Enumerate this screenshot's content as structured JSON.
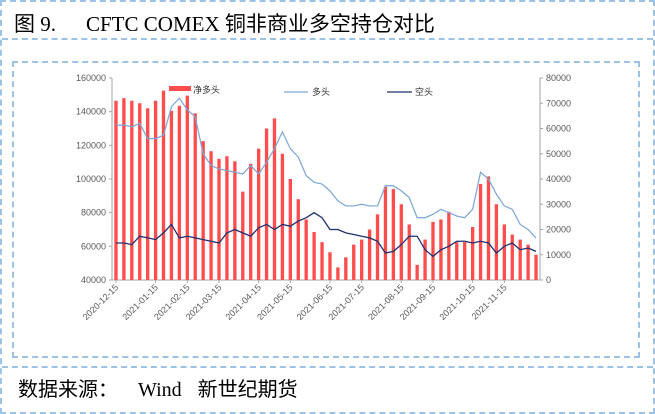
{
  "header": {
    "figure_number": "图 9.",
    "title": "CFTC COMEX 铜非商业多空持仓对比"
  },
  "footer": {
    "source_label": "数据来源：",
    "source_name": "Wind",
    "provider": "新世纪期货"
  },
  "colors": {
    "frame": "#9cc3e5",
    "bars": "#ff4d4d",
    "long_line": "#7aa6d6",
    "short_line": "#1f2f6f",
    "tick_text": "#595959"
  },
  "chart_data": {
    "type": "bar",
    "x_tick_labels": [
      "2020-12-15",
      "2021-01-15",
      "2021-02-15",
      "2021-03-15",
      "2021-04-15",
      "2021-05-15",
      "2021-06-15",
      "2021-07-15",
      "2021-08-15",
      "2021-09-15",
      "2021-10-15",
      "2021-11-15"
    ],
    "x_tick_index": [
      0,
      5,
      9,
      13,
      18,
      22,
      27,
      31,
      36,
      40,
      45,
      49
    ],
    "y_left": {
      "range": [
        40000,
        160000
      ],
      "ticks": [
        40000,
        60000,
        80000,
        100000,
        120000,
        140000,
        160000
      ]
    },
    "y_right": {
      "range": [
        0,
        80000
      ],
      "ticks": [
        0,
        10000,
        20000,
        30000,
        40000,
        50000,
        60000,
        70000,
        80000
      ]
    },
    "legend": [
      {
        "key": "net",
        "label": "净多头"
      },
      {
        "key": "long",
        "label": "多头"
      },
      {
        "key": "short",
        "label": "空头"
      }
    ],
    "series": [
      {
        "key": "net",
        "name": "净多头",
        "type": "bar",
        "axis": "right",
        "values": [
          71000,
          72000,
          71000,
          70000,
          68000,
          71000,
          75000,
          67000,
          69000,
          73000,
          66000,
          55000,
          51000,
          48000,
          49000,
          47000,
          35000,
          46000,
          52000,
          60000,
          64000,
          50000,
          40000,
          32000,
          24000,
          19000,
          15000,
          11000,
          5000,
          9000,
          14000,
          16000,
          20000,
          26000,
          37000,
          36000,
          30000,
          22000,
          6000,
          16000,
          23000,
          24000,
          27000,
          15000,
          15000,
          21000,
          38000,
          41000,
          30000,
          22000,
          18000,
          16000,
          14000,
          10000
        ]
      },
      {
        "key": "long",
        "name": "多头",
        "type": "line",
        "axis": "left",
        "values": [
          132000,
          132000,
          131000,
          133000,
          124000,
          124000,
          126000,
          143000,
          148000,
          141000,
          137000,
          115000,
          108000,
          106000,
          105000,
          104000,
          103000,
          108000,
          103000,
          110000,
          118000,
          128000,
          118000,
          113000,
          102000,
          98000,
          97000,
          93000,
          87000,
          84000,
          84000,
          85000,
          84000,
          84000,
          96000,
          96000,
          93000,
          89000,
          77000,
          77000,
          79000,
          82000,
          80000,
          78000,
          77000,
          82000,
          104000,
          100000,
          91000,
          84000,
          82000,
          73000,
          70000,
          65000
        ]
      },
      {
        "key": "short",
        "name": "空头",
        "type": "line",
        "axis": "left",
        "values": [
          62000,
          62000,
          61000,
          66000,
          65000,
          64000,
          68000,
          73000,
          65000,
          66000,
          65000,
          64000,
          63000,
          62000,
          68000,
          70000,
          68000,
          66000,
          71000,
          73000,
          70000,
          73000,
          72000,
          75000,
          77000,
          80000,
          77000,
          70000,
          70000,
          68000,
          67000,
          66000,
          65000,
          63000,
          56000,
          57000,
          61000,
          66000,
          66000,
          58000,
          54000,
          58000,
          60000,
          63000,
          63000,
          62000,
          63000,
          62000,
          56000,
          60000,
          62000,
          58000,
          59000,
          57000
        ]
      }
    ]
  }
}
